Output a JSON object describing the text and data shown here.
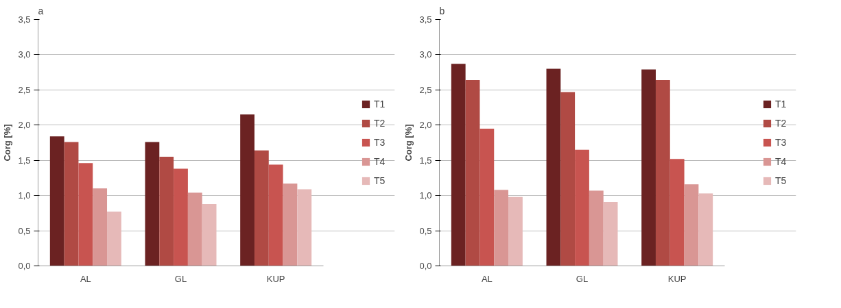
{
  "chart_data": [
    {
      "type": "bar",
      "title": "a",
      "ylabel": "Corg [%]",
      "categories": [
        "AL",
        "GL",
        "KUP"
      ],
      "ylim": [
        0,
        3.5
      ],
      "yticks": [
        {
          "value": 0,
          "label": "0,0"
        },
        {
          "value": 0.5,
          "label": "0,5"
        },
        {
          "value": 1,
          "label": "1,0"
        },
        {
          "value": 1.5,
          "label": "1,5"
        },
        {
          "value": 2,
          "label": "2,0"
        },
        {
          "value": 2.5,
          "label": "2,5"
        },
        {
          "value": 3,
          "label": "3,0"
        },
        {
          "value": 3.5,
          "label": "3,5"
        }
      ],
      "grid": "y",
      "legend": "right",
      "series": [
        {
          "name": "T1",
          "color": "#6b2222",
          "values": [
            1.84,
            1.76,
            2.15
          ]
        },
        {
          "name": "T2",
          "color": "#b04a44",
          "values": [
            1.76,
            1.55,
            1.64
          ]
        },
        {
          "name": "T3",
          "color": "#c85450",
          "values": [
            1.46,
            1.38,
            1.44
          ]
        },
        {
          "name": "T4",
          "color": "#d99694",
          "values": [
            1.1,
            1.04,
            1.17
          ]
        },
        {
          "name": "T5",
          "color": "#e6b9b8",
          "values": [
            0.77,
            0.88,
            1.09
          ]
        }
      ]
    },
    {
      "type": "bar",
      "title": "b",
      "ylabel": "Corg [%]",
      "categories": [
        "AL",
        "GL",
        "KUP"
      ],
      "ylim": [
        0,
        3.5
      ],
      "yticks": [
        {
          "value": 0,
          "label": "0,0"
        },
        {
          "value": 0.5,
          "label": "0,5"
        },
        {
          "value": 1,
          "label": "1,0"
        },
        {
          "value": 1.5,
          "label": "1,5"
        },
        {
          "value": 2,
          "label": "2,0"
        },
        {
          "value": 2.5,
          "label": "2,5"
        },
        {
          "value": 3,
          "label": "3,0"
        },
        {
          "value": 3.5,
          "label": "3,5"
        }
      ],
      "grid": "y",
      "legend": "right",
      "series": [
        {
          "name": "T1",
          "color": "#6b2222",
          "values": [
            2.87,
            2.8,
            2.79
          ]
        },
        {
          "name": "T2",
          "color": "#b04a44",
          "values": [
            2.64,
            2.47,
            2.64
          ]
        },
        {
          "name": "T3",
          "color": "#c85450",
          "values": [
            1.95,
            1.65,
            1.52
          ]
        },
        {
          "name": "T4",
          "color": "#d99694",
          "values": [
            1.08,
            1.07,
            1.16
          ]
        },
        {
          "name": "T5",
          "color": "#e6b9b8",
          "values": [
            0.98,
            0.91,
            1.03
          ]
        }
      ]
    }
  ]
}
